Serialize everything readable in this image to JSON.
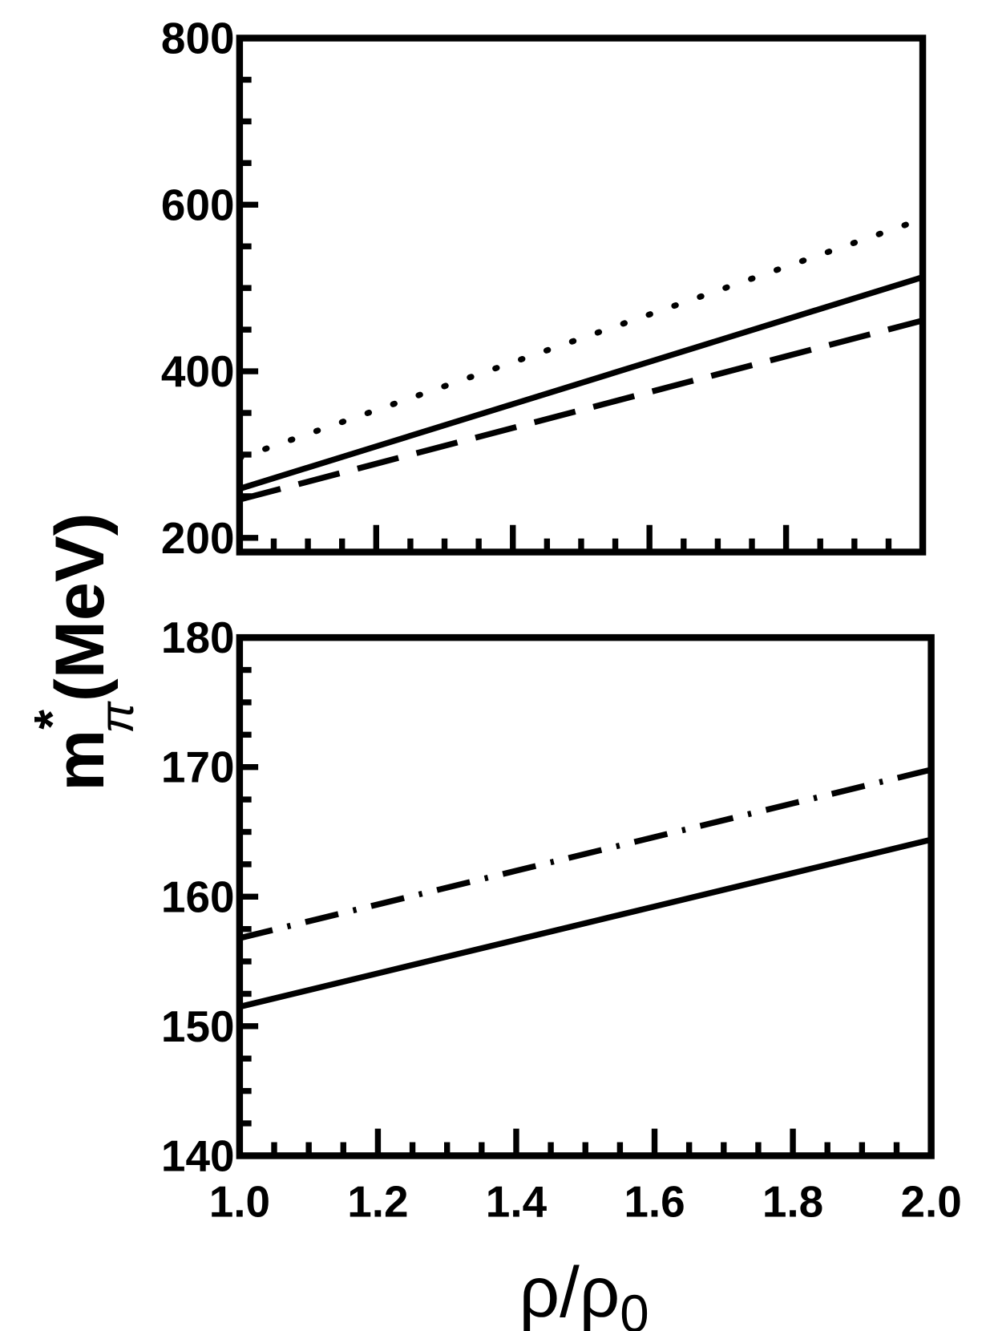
{
  "chart_data": [
    {
      "type": "line",
      "ylabel": {
        "base": "m",
        "superscript": "*",
        "subscript": "π",
        "unit": "(MeV)"
      },
      "x": [
        1.0,
        1.2,
        1.4,
        1.6,
        1.8,
        2.0
      ],
      "series": [
        {
          "color": "#000000",
          "style": "dotted",
          "values": [
            296,
            353.4,
            410.8,
            468.2,
            525.6,
            583
          ]
        },
        {
          "color": "#000000",
          "style": "solid",
          "values": [
            259,
            309.8,
            360.6,
            411.4,
            462.2,
            513
          ]
        },
        {
          "color": "#000000",
          "style": "dashed",
          "values": [
            246,
            289,
            332,
            375,
            418,
            461
          ]
        }
      ],
      "xlim": [
        1.0,
        2.0
      ],
      "ylim": [
        183,
        800
      ],
      "yticks": [
        200,
        400,
        600,
        800
      ],
      "yminorticks": [
        250,
        300,
        350,
        450,
        500,
        550,
        650,
        700,
        750
      ],
      "xticks": [
        1.0,
        1.2,
        1.4,
        1.6,
        1.8,
        2.0
      ],
      "xminorticks": [
        1.05,
        1.1,
        1.15,
        1.25,
        1.3,
        1.35,
        1.45,
        1.5,
        1.55,
        1.65,
        1.7,
        1.75,
        1.85,
        1.9,
        1.95
      ]
    },
    {
      "type": "line",
      "xlabel": {
        "base": "ρ/ρ",
        "subscript": "0"
      },
      "x": [
        1.0,
        1.2,
        1.4,
        1.6,
        1.8,
        2.0
      ],
      "series": [
        {
          "color": "#000000",
          "style": "dashdot",
          "values": [
            156.8,
            159.4,
            162,
            164.6,
            167.2,
            169.8
          ]
        },
        {
          "color": "#000000",
          "style": "solid",
          "values": [
            151.5,
            154.08,
            156.66,
            159.24,
            161.82,
            164.4
          ]
        }
      ],
      "xlim": [
        1.0,
        2.0
      ],
      "ylim": [
        140,
        180
      ],
      "yticks": [
        140,
        150,
        160,
        170,
        180
      ],
      "yminorticks": [
        142.5,
        145,
        147.5,
        152.5,
        155,
        157.5,
        162.5,
        165,
        167.5,
        172.5,
        175,
        177.5
      ],
      "xticks": [
        {
          "value": 1.0,
          "label": "1.0"
        },
        1.2,
        1.4,
        1.6,
        1.8,
        {
          "value": 2.0,
          "label": "2.0"
        }
      ],
      "xminorticks": [
        1.05,
        1.1,
        1.15,
        1.25,
        1.3,
        1.35,
        1.45,
        1.5,
        1.55,
        1.65,
        1.7,
        1.75,
        1.85,
        1.9,
        1.95
      ],
      "xticklabels": true
    }
  ]
}
